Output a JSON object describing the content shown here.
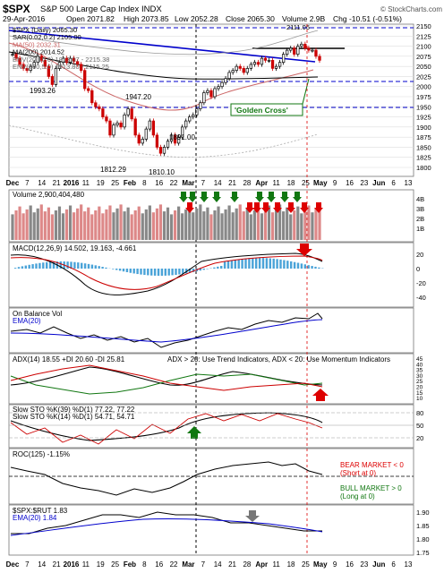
{
  "header": {
    "symbol": "$SPX",
    "name": "S&P 500 Large Cap Index",
    "exchange": "INDX",
    "watermark": "© StockCharts.com",
    "date": "29-Apr-2016",
    "open": "Open 2071.82",
    "high": "High 2073.85",
    "low": "Low 2052.28",
    "close": "Close 2065.30",
    "volume": "Volume 2.9B",
    "change": "Chg -10.51 (-0.51%)"
  },
  "legend": [
    {
      "text": "$SPX (Daily) 2065.30",
      "color": "#000000"
    },
    {
      "text": "SAR(0.02,0.2) 2105.00",
      "color": "#000000"
    },
    {
      "text": "MA(50) 2032.31",
      "color": "#cc6666"
    },
    {
      "text": "MA(200) 2014.52",
      "color": "#000000"
    },
    {
      "text": "ENV(20,10.0) 1813.07 - 2215.38",
      "color": "#666666"
    },
    {
      "text": "ENV(200,5.0) 1913.80 - 2115.25",
      "color": "#666666"
    }
  ],
  "price_labels": {
    "annot_1993": "1993.26",
    "annot_1947": "1947.20",
    "annot_1891": "1891.00",
    "annot_1812": "1812.29",
    "annot_1810": "1810.10",
    "annot_2111": "2111.05",
    "golden_cross": "'Golden Cross'"
  },
  "panels": {
    "volume": {
      "label": "Volume 2,900,404,480",
      "ticks": [
        "4B",
        "3B",
        "2B",
        "1B"
      ]
    },
    "macd": {
      "label": "MACD(12,26,9) 14.502, 19.163, -4.661",
      "ticks": [
        "20",
        "0",
        "-20",
        "-40"
      ]
    },
    "obv": {
      "label": "On Balance Vol",
      "label2": "EMA(20)"
    },
    "adx": {
      "label": "ADX(14) 18.55 +DI 20.60 -DI 25.81",
      "note": "ADX > 20: Use Trend Indicators, ADX < 20: Use Momentum Indicators",
      "ticks": [
        "45",
        "40",
        "35",
        "30",
        "25",
        "20",
        "15",
        "10"
      ]
    },
    "sto": {
      "label": "Slow STO %K(39) %D(1) 77.22, 77.22",
      "label2": "Slow STO %K(14) %D(1) 54.71, 54.71",
      "ticks": [
        "80",
        "50",
        "20"
      ]
    },
    "roc": {
      "label": "ROC(125) -1.15%",
      "bear": "BEAR MARKET < 0",
      "bear2": "(Short at 0)",
      "bull": "BULL MARKET > 0",
      "bull2": "(Long at 0)"
    },
    "rut": {
      "label": "$SPX:$RUT 1.83",
      "label2": "EMA(20) 1.84",
      "ticks": [
        "1.90",
        "1.85",
        "1.80",
        "1.75"
      ]
    }
  },
  "x_axis": [
    "Dec",
    "7",
    "14",
    "21",
    "2016",
    "11",
    "19",
    "25",
    "Feb",
    "8",
    "16",
    "22",
    "Mar",
    "7",
    "14",
    "21",
    "28",
    "Apr",
    "11",
    "18",
    "25",
    "May",
    "9",
    "16",
    "23",
    "Jun",
    "6",
    "13"
  ],
  "colors": {
    "up": "#000000",
    "down": "#cc0000",
    "green": "#117711",
    "red": "#dd0000",
    "blue": "#0000cc",
    "grid": "#dddddd"
  },
  "chart_data": {
    "type": "line",
    "title": "$SPX S&P 500 Large Cap Index INDX",
    "series": [
      {
        "name": "$SPX (Daily)",
        "values": [
          2080,
          2070,
          2055,
          2045,
          2040,
          2050,
          2060,
          2075,
          2065,
          2050,
          2025,
          2005,
          2045,
          2060,
          2070,
          2060,
          2070,
          2062,
          2055,
          2040,
          1995,
          1990,
          1960,
          1950,
          1945,
          1925,
          1915,
          1880,
          1905,
          1910,
          1900,
          1930,
          1945,
          1920,
          1880,
          1860,
          1870,
          1895,
          1915,
          1880,
          1850,
          1835,
          1850,
          1865,
          1880,
          1860,
          1875,
          1900,
          1915,
          1925,
          1930,
          1945,
          1960,
          1985,
          1990,
          1975,
          1995,
          2000,
          2010,
          2020,
          2035,
          2040,
          2050,
          2045,
          2035,
          2045,
          2055,
          2060,
          2055,
          2070,
          2065,
          2065,
          2045,
          2050,
          2060,
          2080,
          2090,
          2095,
          2080,
          2100,
          2105,
          2095,
          2090,
          2090,
          2075,
          2065
        ]
      },
      {
        "name": "MA(50)",
        "values": [
          2070,
          2060,
          2040,
          2020,
          2000,
          1985,
          1970,
          1955,
          1940,
          1930,
          1922,
          1918,
          1915,
          1920,
          1930,
          1950,
          1970,
          1990,
          2000,
          2010,
          2020,
          2030,
          2032
        ]
      },
      {
        "name": "MA(200)",
        "values": [
          2050,
          2045,
          2040,
          2034,
          2028,
          2024,
          2020,
          2018,
          2016,
          2015,
          2014,
          2014,
          2014,
          2014,
          2015,
          2015,
          2014,
          2014,
          2014,
          2014,
          2014,
          2014,
          2014
        ]
      },
      {
        "name": "$SPX:$RUT",
        "values": [
          1.82,
          1.82,
          1.84,
          1.85,
          1.87,
          1.89,
          1.89,
          1.88,
          1.9,
          1.89,
          1.89,
          1.88,
          1.86,
          1.86,
          1.85,
          1.84,
          1.83,
          1.83
        ]
      }
    ],
    "ylim": [
      1800,
      2150
    ],
    "yticks": [
      "2150",
      "2125",
      "2100",
      "2075",
      "2050",
      "2025",
      "2000",
      "1975",
      "1950",
      "1925",
      "1900",
      "1875",
      "1850",
      "1825",
      "1800"
    ],
    "annotations": [
      "1993.26",
      "1947.20",
      "1891.00",
      "1812.29",
      "1810.10",
      "'Golden Cross'"
    ]
  }
}
